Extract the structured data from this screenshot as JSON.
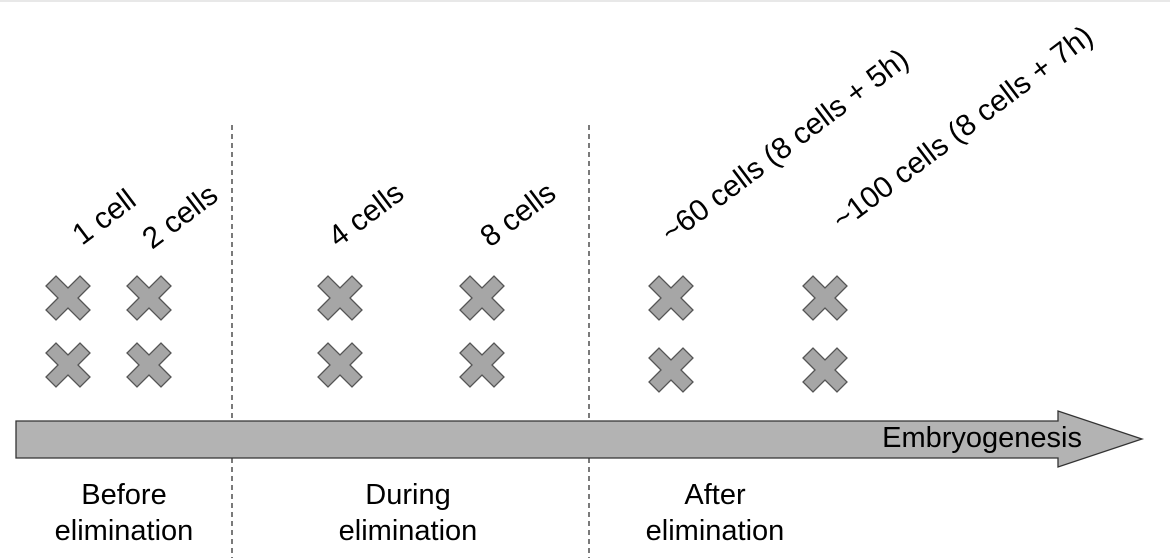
{
  "colors": {
    "marker_fill": "#a6a6a6",
    "marker_stroke": "#555555",
    "arrow_fill": "#b3b3b3",
    "arrow_stroke": "#333333",
    "divider": "#222222",
    "text": "#000000"
  },
  "timepoints": [
    {
      "label": "1 cell"
    },
    {
      "label": "2 cells"
    },
    {
      "label": "4 cells"
    },
    {
      "label": "8 cells"
    },
    {
      "label": "~60 cells (8 cells + 5h)"
    },
    {
      "label": "~100 cells (8 cells + 7h)"
    }
  ],
  "arrow": {
    "label": "Embryogenesis"
  },
  "stages": [
    {
      "line1": "Before",
      "line2": "elimination"
    },
    {
      "line1": "During",
      "line2": "elimination"
    },
    {
      "line1": "After",
      "line2": "elimination"
    }
  ]
}
